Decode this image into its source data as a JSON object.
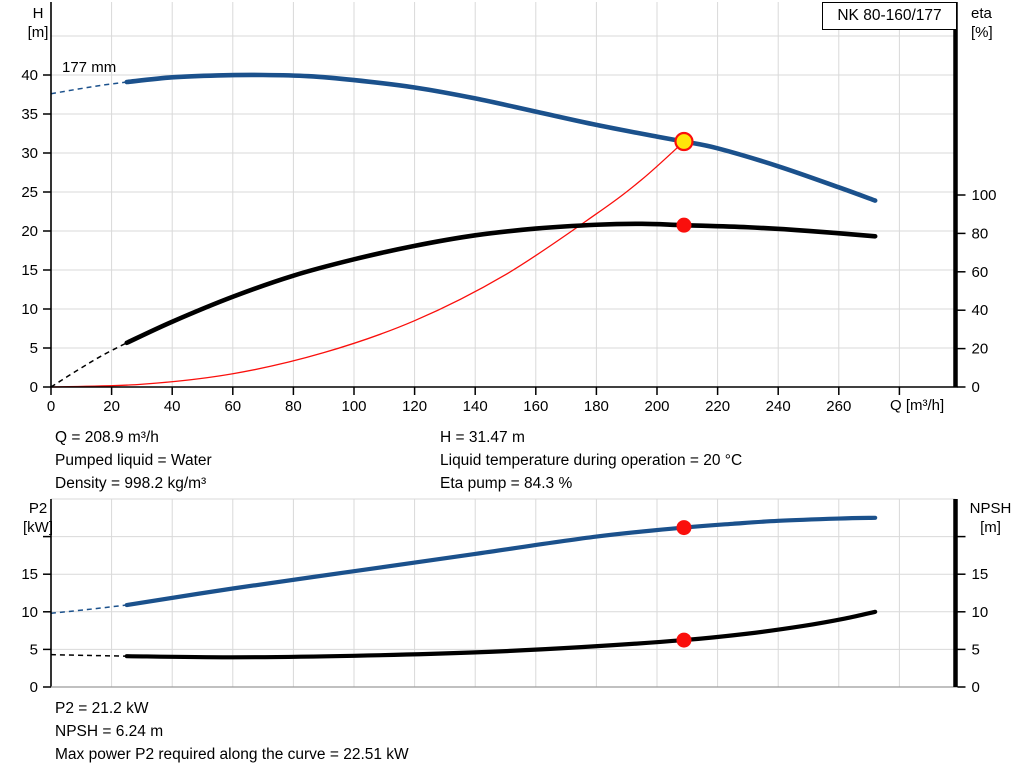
{
  "colors": {
    "blue": "#1b518c",
    "black": "#000000",
    "red": "#fa0f0c",
    "yellow": "#ffe60a",
    "grid": "#d9d9d9",
    "axis": "#000000",
    "baseline_light": "#9b9b9b",
    "background": "#ffffff"
  },
  "axis_titles": {
    "h": [
      "H",
      "[m]"
    ],
    "eta": [
      "eta",
      "[%]"
    ],
    "p2": [
      "P2",
      "[kW]"
    ],
    "npsh": [
      "NPSH",
      "[m]"
    ]
  },
  "readouts": {
    "top_left": [
      "Q = 208.9 m³/h",
      "Pumped liquid = Water",
      "Density = 998.2 kg/m³"
    ],
    "top_right": [
      "H = 31.47 m",
      "Liquid temperature during operation = 20 °C",
      "Eta pump = 84.3 %"
    ],
    "bottom": [
      "P2 = 21.2 kW",
      "NPSH = 6.24 m",
      "Max power P2 required along the curve = 22.51 kW"
    ]
  },
  "chart_data": [
    {
      "type": "line",
      "title": "NK 80-160/177",
      "xlabel": "Q [m³/h]",
      "ylabel_left": "H [m]",
      "ylabel_right": "eta [%]",
      "xlim": [
        0,
        299
      ],
      "ylim_left": [
        0,
        49.4
      ],
      "ylim_right": [
        0,
        200
      ],
      "grid": true,
      "x_ticks": [
        0,
        20,
        40,
        60,
        80,
        100,
        120,
        140,
        160,
        180,
        200,
        220,
        240,
        260
      ],
      "x_tick_marks": [
        0,
        20,
        40,
        60,
        80,
        100,
        120,
        140,
        160,
        180,
        200,
        220,
        240,
        260,
        280
      ],
      "x_gridlines": [
        20,
        40,
        60,
        80,
        100,
        120,
        140,
        160,
        180,
        200,
        220,
        240,
        260,
        280
      ],
      "y_ticks_left": [
        0,
        5,
        10,
        15,
        20,
        25,
        30,
        35,
        40
      ],
      "y_tick_marks_left": [
        0,
        5,
        10,
        15,
        20,
        25,
        30,
        35,
        40
      ],
      "y_gridlines_left": [
        5,
        10,
        15,
        20,
        25,
        30,
        35,
        40,
        45
      ],
      "y_ticks_right": [
        0,
        20,
        40,
        60,
        80,
        100
      ],
      "y_tick_marks_right": [
        0,
        20,
        40,
        60,
        80,
        100
      ],
      "series": [
        {
          "name": "system-curve",
          "label": "System curve",
          "axis": "left",
          "color_key": "red",
          "width": 1.3,
          "points": [
            [
              0,
              0
            ],
            [
              30,
              0.35
            ],
            [
              60,
              1.7
            ],
            [
              90,
              4.4
            ],
            [
              120,
              8.5
            ],
            [
              150,
              14.4
            ],
            [
              180,
              22.2
            ],
            [
              195,
              26.6
            ],
            [
              208.9,
              31.47
            ]
          ]
        },
        {
          "name": "efficiency-curve",
          "label": "Pump efficiency eta",
          "axis": "right",
          "color_key": "black",
          "width": 4.6,
          "lead_in": [
            [
              0,
              0
            ],
            [
              9,
              9
            ],
            [
              17,
              16.5
            ],
            [
              25,
              23
            ]
          ],
          "points": [
            [
              25,
              23
            ],
            [
              40,
              34
            ],
            [
              60,
              47
            ],
            [
              80,
              58
            ],
            [
              100,
              66.5
            ],
            [
              120,
              73.5
            ],
            [
              140,
              79
            ],
            [
              160,
              82.5
            ],
            [
              180,
              84.5
            ],
            [
              195,
              85.0
            ],
            [
              208.9,
              84.3
            ],
            [
              230,
              83.2
            ],
            [
              250,
              81.3
            ],
            [
              272,
              78.5
            ]
          ]
        },
        {
          "name": "head-curve",
          "label": "177 mm",
          "axis": "left",
          "color_key": "blue",
          "width": 4.6,
          "lead_in": [
            [
              0,
              37.6
            ],
            [
              9,
              38.2
            ],
            [
              17,
              38.7
            ],
            [
              25,
              39.1
            ]
          ],
          "points": [
            [
              25,
              39.1
            ],
            [
              40,
              39.7
            ],
            [
              55,
              39.95
            ],
            [
              70,
              40.0
            ],
            [
              85,
              39.85
            ],
            [
              100,
              39.35
            ],
            [
              120,
              38.4
            ],
            [
              140,
              37.0
            ],
            [
              160,
              35.3
            ],
            [
              180,
              33.6
            ],
            [
              200,
              32.1
            ],
            [
              208.9,
              31.47
            ],
            [
              220,
              30.6
            ],
            [
              240,
              28.3
            ],
            [
              260,
              25.6
            ],
            [
              272,
              23.9
            ]
          ]
        }
      ],
      "duty_points": [
        {
          "q": 208.9,
          "value": 31.47,
          "axis": "left",
          "marker": "yellow"
        },
        {
          "q": 208.9,
          "value": 84.3,
          "axis": "right",
          "marker": "red"
        }
      ]
    },
    {
      "type": "line",
      "title": "",
      "xlabel": "",
      "ylabel_left": "P2 [kW]",
      "ylabel_right": "NPSH [m]",
      "xlim": [
        0,
        299
      ],
      "ylim_left": [
        0,
        25.3
      ],
      "ylim_right": [
        0,
        25.3
      ],
      "grid": true,
      "x_ticks": [],
      "x_tick_marks": [],
      "x_gridlines": [
        20,
        40,
        60,
        80,
        100,
        120,
        140,
        160,
        180,
        200,
        220,
        240,
        260,
        280
      ],
      "y_ticks_left": [
        0,
        5,
        10,
        15
      ],
      "y_tick_marks_left": [
        0,
        5,
        10,
        15,
        20
      ],
      "y_gridlines_left": [
        5,
        10,
        15,
        20,
        25
      ],
      "y_ticks_right": [
        0,
        5,
        10,
        15
      ],
      "y_tick_marks_right": [
        0,
        5,
        10,
        15,
        20
      ],
      "series": [
        {
          "name": "p2-curve",
          "label": "Shaft power P2",
          "axis": "left",
          "color_key": "blue",
          "width": 4.2,
          "lead_in": [
            [
              0,
              9.8
            ],
            [
              12,
              10.3
            ],
            [
              25,
              10.9
            ]
          ],
          "points": [
            [
              25,
              10.9
            ],
            [
              60,
              13.1
            ],
            [
              100,
              15.4
            ],
            [
              140,
              17.7
            ],
            [
              180,
              20.0
            ],
            [
              208.9,
              21.2
            ],
            [
              225,
              21.7
            ],
            [
              240,
              22.1
            ],
            [
              260,
              22.4
            ],
            [
              272,
              22.5
            ]
          ]
        },
        {
          "name": "npsh-curve",
          "label": "NPSH",
          "axis": "right",
          "color_key": "black",
          "width": 4.2,
          "lead_in": [
            [
              0,
              4.3
            ],
            [
              12,
              4.2
            ],
            [
              25,
              4.1
            ]
          ],
          "points": [
            [
              25,
              4.1
            ],
            [
              60,
              3.95
            ],
            [
              100,
              4.15
            ],
            [
              140,
              4.6
            ],
            [
              175,
              5.3
            ],
            [
              208.9,
              6.24
            ],
            [
              230,
              7.1
            ],
            [
              248,
              8.1
            ],
            [
              262,
              9.1
            ],
            [
              272,
              10.0
            ]
          ]
        }
      ],
      "duty_points": [
        {
          "q": 208.9,
          "value": 21.2,
          "axis": "left",
          "marker": "red"
        },
        {
          "q": 208.9,
          "value": 6.24,
          "axis": "right",
          "marker": "red"
        }
      ]
    }
  ]
}
